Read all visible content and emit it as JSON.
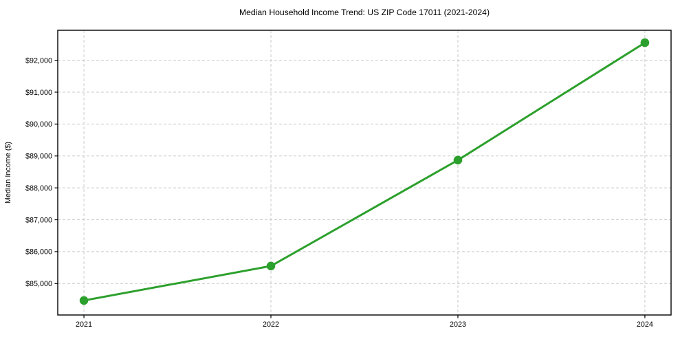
{
  "chart_data": {
    "type": "line",
    "title": "Median Household Income Trend: US ZIP Code 17011 (2021-2024)",
    "xlabel": "",
    "ylabel": "Median Income ($)",
    "x": [
      2021,
      2022,
      2023,
      2024
    ],
    "values": [
      84470,
      85550,
      88870,
      92550
    ],
    "x_tick_labels": [
      "2021",
      "2022",
      "2023",
      "2024"
    ],
    "y_tick_values": [
      85000,
      86000,
      87000,
      88000,
      89000,
      90000,
      91000,
      92000
    ],
    "y_tick_labels": [
      "$85,000",
      "$86,000",
      "$87,000",
      "$88,000",
      "$89,000",
      "$90,000",
      "$91,000",
      "$92,000"
    ],
    "xlim": [
      2020.86,
      2024.14
    ],
    "ylim": [
      84015,
      92940
    ],
    "grid": true,
    "grid_style": "dashed",
    "legend": false,
    "line_color": "#2ca02c",
    "grid_color": "#c9c9c9",
    "frame_color": "#000000",
    "marker": "circle"
  }
}
